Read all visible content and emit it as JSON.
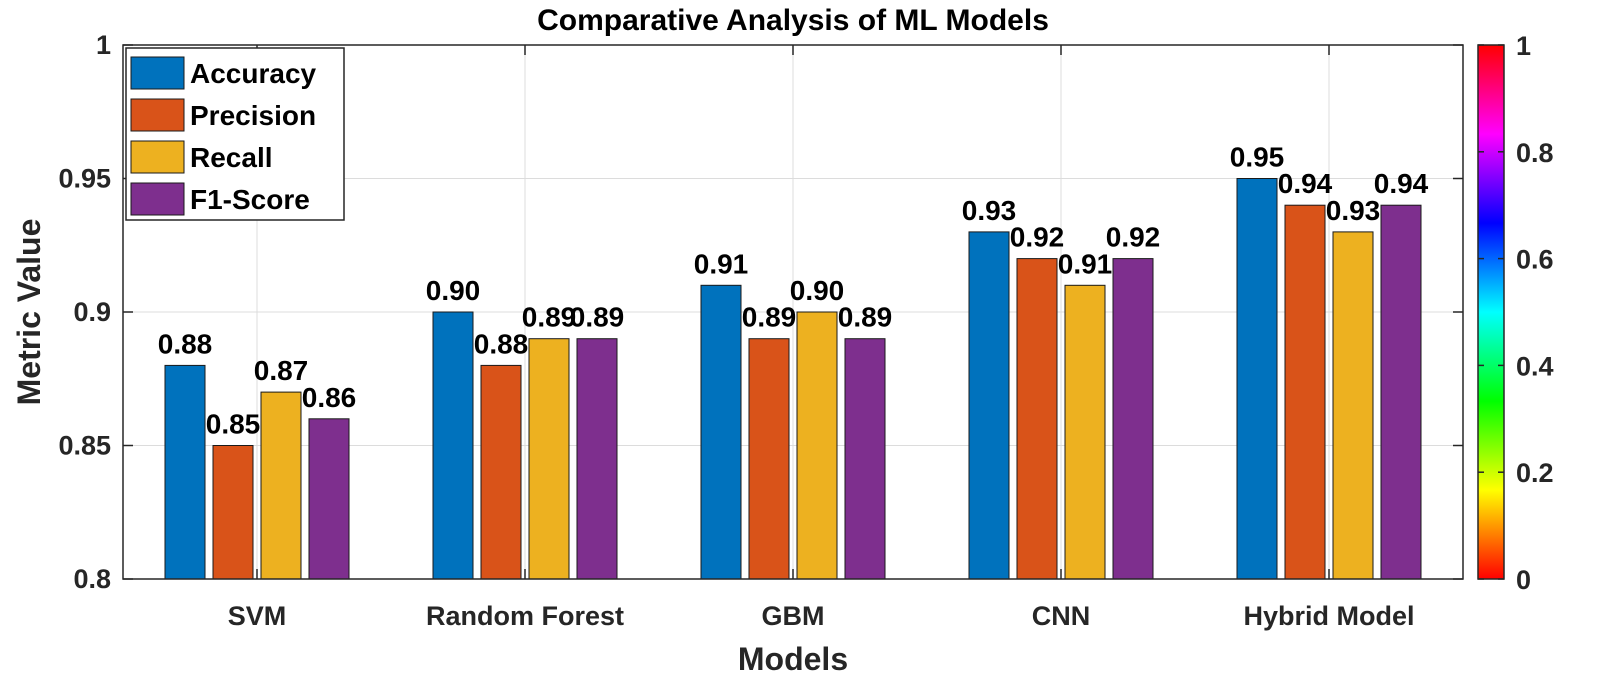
{
  "chart_data": {
    "type": "bar",
    "title": "Comparative Analysis of ML Models",
    "xlabel": "Models",
    "ylabel": "Metric Value",
    "ylim": [
      0.8,
      1.0
    ],
    "yticks": [
      "0.8",
      "0.85",
      "0.9",
      "0.95",
      "1"
    ],
    "categories": [
      "SVM",
      "Random Forest",
      "GBM",
      "CNN",
      "Hybrid Model"
    ],
    "series": [
      {
        "name": "Accuracy",
        "color": "#0072BD",
        "values": [
          0.88,
          0.9,
          0.91,
          0.93,
          0.95
        ],
        "labels": [
          "0.88",
          "0.90",
          "0.91",
          "0.93",
          "0.95"
        ]
      },
      {
        "name": "Precision",
        "color": "#D95319",
        "values": [
          0.85,
          0.88,
          0.89,
          0.92,
          0.94
        ],
        "labels": [
          "0.85",
          "0.88",
          "0.89",
          "0.92",
          "0.94"
        ]
      },
      {
        "name": "Recall",
        "color": "#EDB120",
        "values": [
          0.87,
          0.89,
          0.9,
          0.91,
          0.93
        ],
        "labels": [
          "0.87",
          "0.89",
          "0.90",
          "0.91",
          "0.93"
        ]
      },
      {
        "name": "F1-Score",
        "color": "#7E2F8E",
        "values": [
          0.86,
          0.89,
          0.89,
          0.92,
          0.94
        ],
        "labels": [
          "0.86",
          "0.89",
          "0.89",
          "0.92",
          "0.94"
        ]
      }
    ],
    "grid": true,
    "legend_position": "top-left",
    "colorbar": {
      "colormap": "hsv",
      "range": [
        0,
        1
      ],
      "ticks": [
        "0",
        "0.2",
        "0.4",
        "0.6",
        "0.8",
        "1"
      ]
    }
  }
}
